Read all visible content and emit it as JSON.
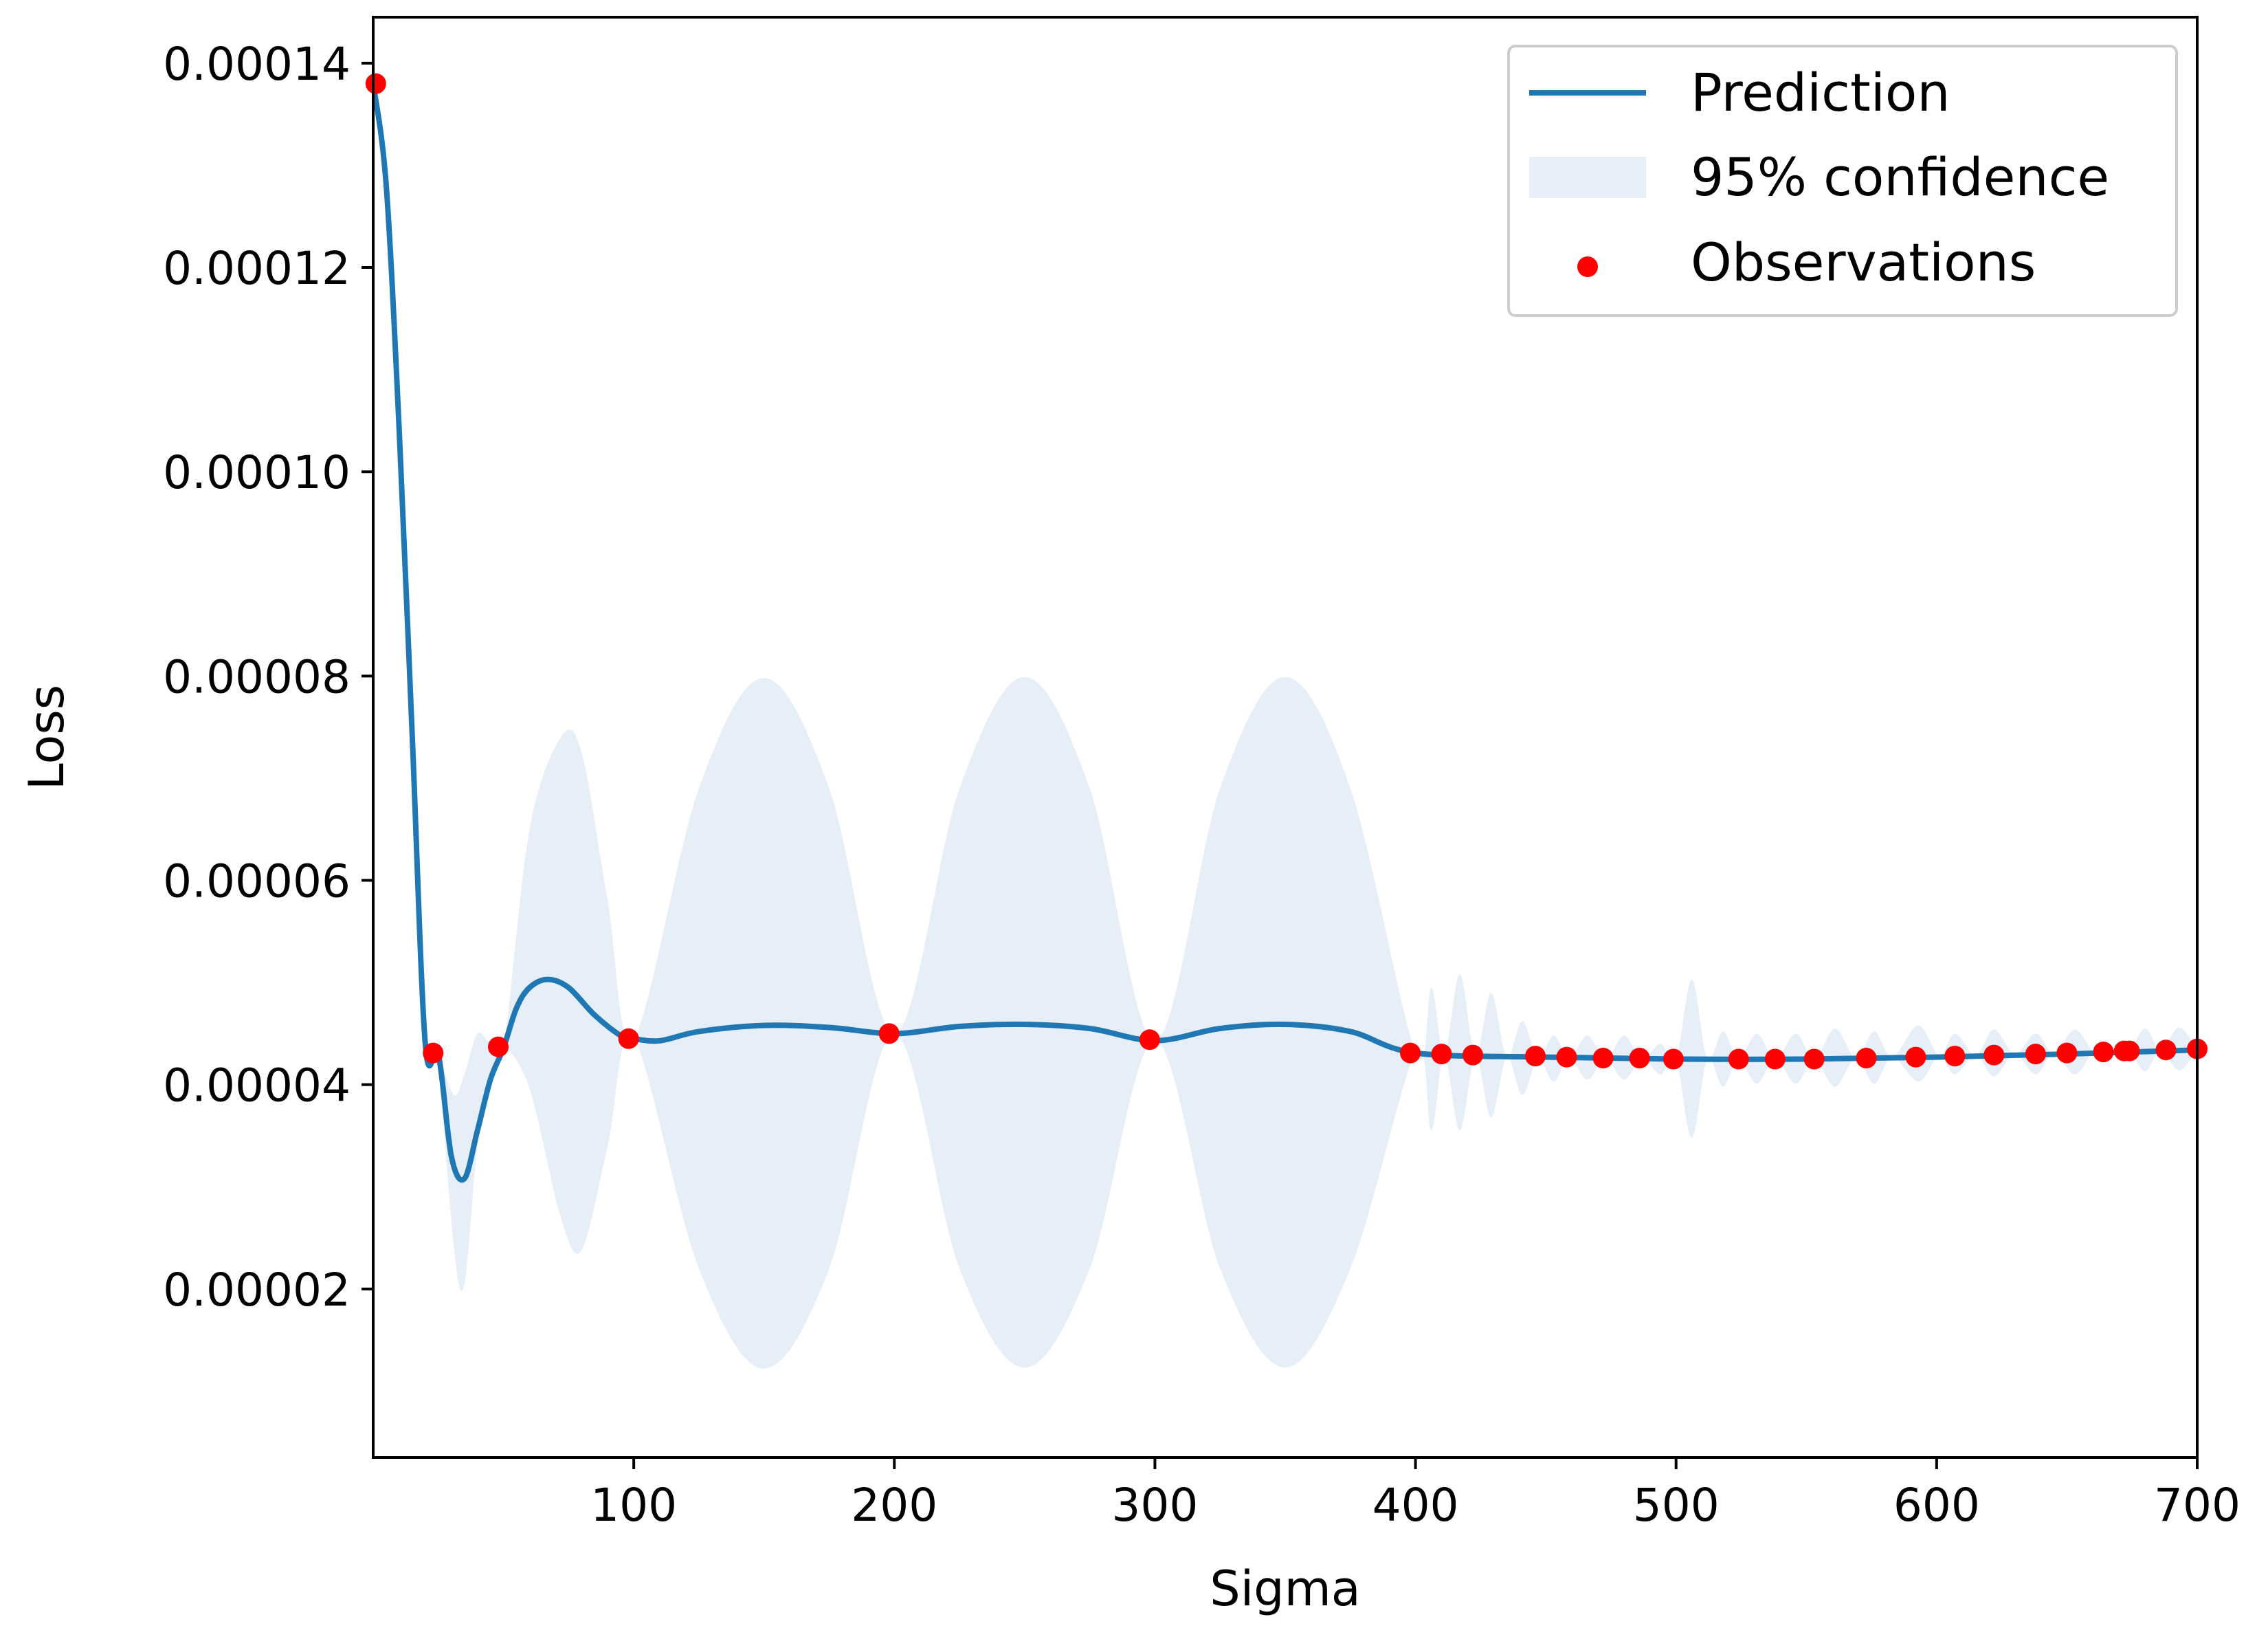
{
  "chart_data": {
    "type": "line",
    "xlabel": "Sigma",
    "ylabel": "Loss",
    "xlim": [
      0,
      700
    ],
    "ylim": [
      3.5e-06,
      0.0001445
    ],
    "x_ticks": [
      100,
      200,
      300,
      400,
      500,
      600,
      700
    ],
    "x_tick_labels": [
      "100",
      "200",
      "300",
      "400",
      "500",
      "600",
      "700"
    ],
    "y_ticks": [
      2e-05,
      4e-05,
      6e-05,
      8e-05,
      0.0001,
      0.00012,
      0.00014
    ],
    "y_tick_labels": [
      "0.00002",
      "0.00004",
      "0.00006",
      "0.00008",
      "0.00010",
      "0.00012",
      "0.00014"
    ],
    "grid": false,
    "legend": {
      "position": "top-right",
      "entries": [
        "Prediction",
        "95% confidence",
        "Observations"
      ]
    },
    "colors": {
      "prediction": "#1f77b4",
      "confidence": "#e6eff8",
      "observations": "#ff0000"
    },
    "series": [
      {
        "name": "Prediction",
        "style": "line",
        "x": [
          0,
          5,
          10,
          15,
          20,
          25,
          30,
          35,
          40,
          45,
          50,
          55,
          60,
          67,
          75,
          85,
          95,
          100,
          110,
          125,
          150,
          175,
          200,
          225,
          250,
          275,
          300,
          325,
          350,
          375,
          400,
          450,
          500,
          550,
          600,
          650,
          700
        ],
        "y": [
          0.000138,
          0.000128,
          0.000104,
          7.4e-05,
          4.4e-05,
          4.3e-05,
          3.3e-05,
          3.08e-05,
          3.55e-05,
          4.05e-05,
          4.36e-05,
          4.75e-05,
          4.95e-05,
          5.03e-05,
          4.95e-05,
          4.68e-05,
          4.48e-05,
          4.45e-05,
          4.43e-05,
          4.52e-05,
          4.58e-05,
          4.56e-05,
          4.5e-05,
          4.57e-05,
          4.59e-05,
          4.55e-05,
          4.43e-05,
          4.55e-05,
          4.59e-05,
          4.52e-05,
          4.31e-05,
          4.27e-05,
          4.25e-05,
          4.25e-05,
          4.27e-05,
          4.3e-05,
          4.34e-05
        ]
      },
      {
        "name": "95% confidence",
        "style": "band",
        "x": [
          25,
          31,
          35,
          40,
          45,
          50,
          60,
          72,
          80,
          90,
          100,
          125,
          150,
          175,
          200,
          225,
          250,
          275,
          300,
          325,
          350,
          375,
          400,
          406,
          411,
          417,
          423,
          429,
          435,
          441,
          447,
          453,
          459,
          466,
          473,
          480,
          487,
          494,
          500,
          506,
          512,
          518,
          524,
          531,
          538,
          546,
          553,
          561,
          569,
          576,
          583,
          593,
          601,
          607,
          615,
          622,
          630,
          638,
          645,
          653,
          660,
          664,
          668,
          671,
          674,
          680,
          686,
          693,
          700
        ],
        "lower": [
          4.3e-05,
          2.4e-05,
          2.05e-05,
          3.4e-05,
          4.05e-05,
          4.36e-05,
          3.96e-05,
          2.7e-05,
          2.38e-05,
          3.4e-05,
          4.45e-05,
          2.2e-05,
          1.22e-05,
          2.2e-05,
          4.5e-05,
          2.2e-05,
          1.23e-05,
          2.2e-05,
          4.43e-05,
          2.2e-05,
          1.23e-05,
          2.2e-05,
          4.31e-05,
          3.55e-05,
          4.29e-05,
          3.55e-05,
          4.28e-05,
          3.68e-05,
          4.27e-05,
          3.9e-05,
          4.26e-05,
          4.03e-05,
          4.26e-05,
          4.05e-05,
          4.25e-05,
          4.05e-05,
          4.25e-05,
          4.1e-05,
          4.25e-05,
          3.48e-05,
          4.25e-05,
          3.98e-05,
          4.25e-05,
          4.01e-05,
          4.25e-05,
          4.01e-05,
          4.25e-05,
          3.98e-05,
          4.26e-05,
          4.01e-05,
          4.27e-05,
          4.03e-05,
          4.28e-05,
          4.1e-05,
          4.29e-05,
          4.08e-05,
          4.3e-05,
          4.1e-05,
          4.31e-05,
          4.1e-05,
          4.32e-05,
          4.31e-05,
          4.33e-05,
          4.25e-05,
          4.33e-05,
          4.13e-05,
          4.34e-05,
          4.14e-05,
          4.34e-05
        ],
        "upper": [
          4.3e-05,
          3.9e-05,
          4.1e-05,
          4.5e-05,
          4.4e-05,
          4.36e-05,
          6.5e-05,
          7.4e-05,
          7.25e-05,
          5.8e-05,
          4.45e-05,
          6.9e-05,
          7.98e-05,
          6.9e-05,
          4.5e-05,
          6.9e-05,
          7.99e-05,
          6.9e-05,
          4.43e-05,
          6.9e-05,
          7.99e-05,
          6.9e-05,
          4.31e-05,
          4.95e-05,
          4.29e-05,
          5.08e-05,
          4.28e-05,
          4.9e-05,
          4.27e-05,
          4.62e-05,
          4.26e-05,
          4.48e-05,
          4.26e-05,
          4.48e-05,
          4.25e-05,
          4.48e-05,
          4.25e-05,
          4.4e-05,
          4.25e-05,
          5.03e-05,
          4.25e-05,
          4.52e-05,
          4.25e-05,
          4.5e-05,
          4.25e-05,
          4.5e-05,
          4.25e-05,
          4.55e-05,
          4.26e-05,
          4.52e-05,
          4.27e-05,
          4.58e-05,
          4.28e-05,
          4.5e-05,
          4.29e-05,
          4.54e-05,
          4.3e-05,
          4.5e-05,
          4.31e-05,
          4.54e-05,
          4.32e-05,
          4.31e-05,
          4.33e-05,
          4.4e-05,
          4.33e-05,
          4.55e-05,
          4.34e-05,
          4.56e-05,
          4.34e-05
        ]
      },
      {
        "name": "Observations",
        "style": "scatter",
        "x": [
          1,
          23,
          48,
          98,
          198,
          298,
          398,
          410,
          422,
          446,
          458,
          472,
          486,
          499,
          524,
          538,
          553,
          573,
          592,
          607,
          622,
          638,
          650,
          664,
          672,
          674,
          688,
          700
        ],
        "y": [
          0.000138,
          4.31e-05,
          4.37e-05,
          4.45e-05,
          4.5e-05,
          4.44e-05,
          4.31e-05,
          4.3e-05,
          4.29e-05,
          4.28e-05,
          4.27e-05,
          4.26e-05,
          4.26e-05,
          4.25e-05,
          4.25e-05,
          4.25e-05,
          4.25e-05,
          4.26e-05,
          4.27e-05,
          4.28e-05,
          4.29e-05,
          4.3e-05,
          4.31e-05,
          4.32e-05,
          4.33e-05,
          4.33e-05,
          4.34e-05,
          4.35e-05
        ]
      }
    ]
  }
}
